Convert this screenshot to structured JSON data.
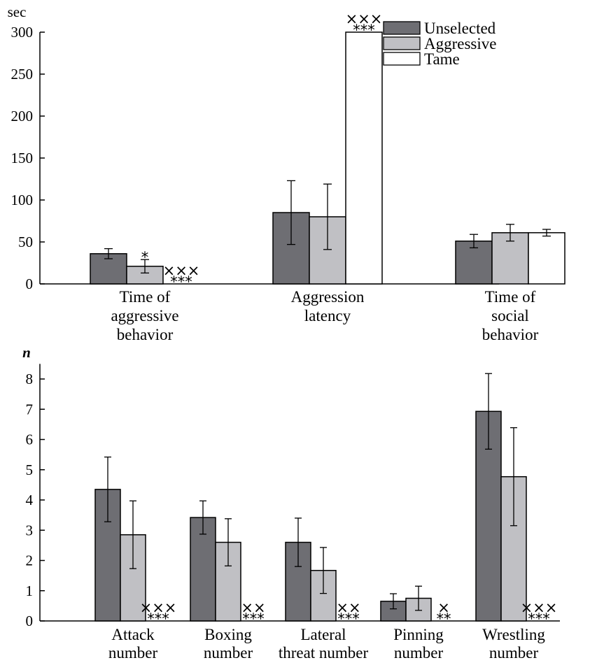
{
  "chart_data": [
    {
      "type": "bar",
      "unit_label": "sec",
      "ylim": [
        0,
        300
      ],
      "yticks": [
        0,
        50,
        100,
        150,
        200,
        250,
        300
      ],
      "grid": false,
      "legend_position": "top-right",
      "legend": [
        {
          "name": "Unselected",
          "color": "#6e6e73"
        },
        {
          "name": "Aggressive",
          "color": "#c0c0c4"
        },
        {
          "name": "Tame",
          "color": "#ffffff"
        }
      ],
      "categories": [
        [
          "Time of",
          "aggressive",
          "behavior"
        ],
        [
          "Aggression",
          "latency"
        ],
        [
          "Time of",
          "social",
          "behavior"
        ]
      ],
      "series": [
        {
          "name": "Unselected",
          "values": [
            36,
            85,
            51
          ],
          "errors": [
            6,
            38,
            8
          ]
        },
        {
          "name": "Aggressive",
          "values": [
            21,
            80,
            61
          ],
          "errors": [
            8,
            39,
            10
          ]
        },
        {
          "name": "Tame",
          "values": [
            0,
            300,
            61
          ],
          "errors": [
            0,
            0,
            4
          ]
        }
      ],
      "significance": [
        {
          "category": 0,
          "series": 1,
          "marks": [
            "*"
          ]
        },
        {
          "category": 0,
          "series": 2,
          "marks": [
            "×××",
            "***"
          ]
        },
        {
          "category": 1,
          "series": 2,
          "marks": [
            "×××",
            "***"
          ]
        }
      ]
    },
    {
      "type": "bar",
      "unit_label": "n",
      "ylim": [
        0,
        8.5
      ],
      "yticks": [
        0,
        1,
        2,
        3,
        4,
        5,
        6,
        7,
        8
      ],
      "grid": false,
      "categories": [
        [
          "Attack",
          "number"
        ],
        [
          "Boxing",
          "number"
        ],
        [
          "Lateral",
          "threat number"
        ],
        [
          "Pinning",
          "number"
        ],
        [
          "Wrestling",
          "number"
        ]
      ],
      "series": [
        {
          "name": "Unselected",
          "values": [
            4.35,
            3.42,
            2.6,
            0.65,
            6.93
          ],
          "errors": [
            1.07,
            0.55,
            0.8,
            0.25,
            1.25
          ]
        },
        {
          "name": "Aggressive",
          "values": [
            2.85,
            2.6,
            1.67,
            0.75,
            4.77
          ],
          "errors": [
            1.12,
            0.78,
            0.76,
            0.4,
            1.62
          ]
        },
        {
          "name": "Tame",
          "values": [
            0,
            0,
            0,
            0,
            0
          ],
          "errors": [
            0,
            0,
            0,
            0,
            0
          ]
        }
      ],
      "significance": [
        {
          "category": 0,
          "series": 2,
          "marks": [
            "×××",
            "***"
          ]
        },
        {
          "category": 1,
          "series": 2,
          "marks": [
            "××",
            "***"
          ]
        },
        {
          "category": 2,
          "series": 2,
          "marks": [
            "××",
            "***"
          ]
        },
        {
          "category": 3,
          "series": 2,
          "marks": [
            "×",
            "**"
          ]
        },
        {
          "category": 4,
          "series": 2,
          "marks": [
            "×××",
            "***"
          ]
        }
      ]
    }
  ]
}
